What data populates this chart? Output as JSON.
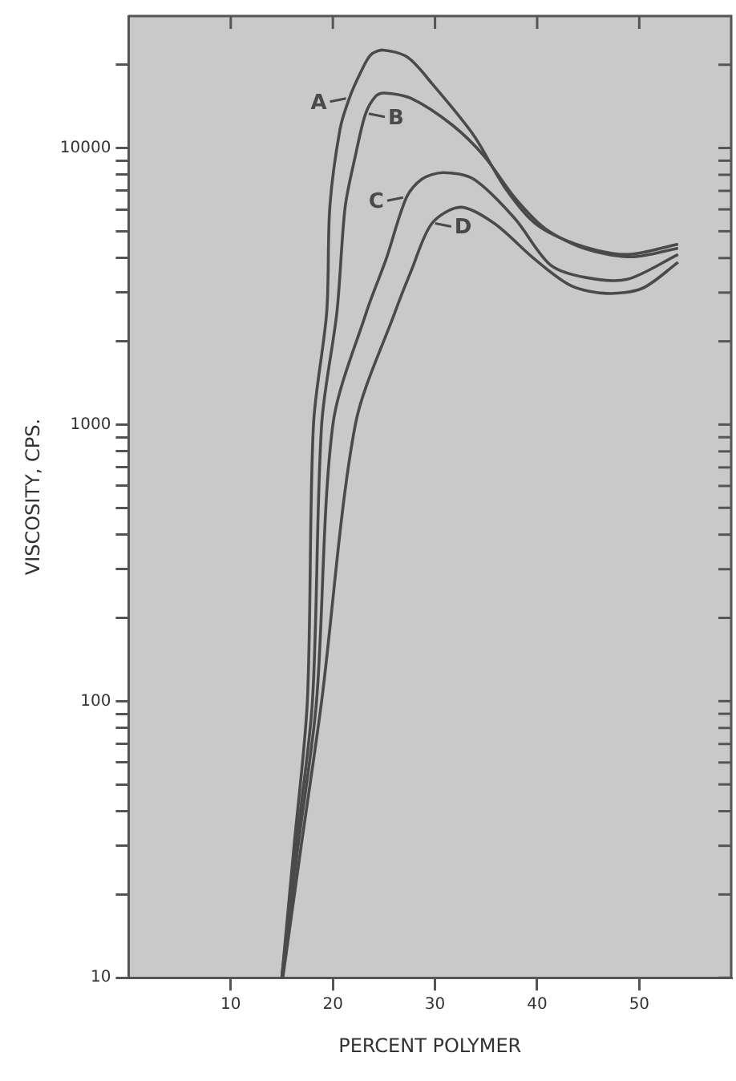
{
  "chart_data": {
    "type": "line",
    "xlabel": "PERCENT POLYMER",
    "ylabel": "VISCOSITY, CPS.",
    "log": "y",
    "grid": false,
    "legend": "top",
    "marker": "none",
    "line_style": "solid",
    "xlim": [
      0,
      59
    ],
    "xticks": [
      10,
      20,
      30,
      40,
      50
    ],
    "ylim": [
      10,
      30000
    ],
    "yticks": [
      10,
      {
        "value": 20,
        "label": null
      },
      {
        "value": 30,
        "label": null
      },
      {
        "value": 40,
        "label": null
      },
      {
        "value": 50,
        "label": null
      },
      {
        "value": 60,
        "label": null
      },
      {
        "value": 70,
        "label": null
      },
      {
        "value": 80,
        "label": null
      },
      {
        "value": 90,
        "label": null
      },
      100,
      {
        "value": 200,
        "label": null
      },
      {
        "value": 300,
        "label": null
      },
      {
        "value": 400,
        "label": null
      },
      {
        "value": 500,
        "label": null
      },
      {
        "value": 600,
        "label": null
      },
      {
        "value": 700,
        "label": null
      },
      {
        "value": 800,
        "label": null
      },
      {
        "value": 900,
        "label": null
      },
      1000,
      {
        "value": 2000,
        "label": null
      },
      {
        "value": 3000,
        "label": null
      },
      {
        "value": 4000,
        "label": null
      },
      {
        "value": 5000,
        "label": null
      },
      {
        "value": 6000,
        "label": null
      },
      {
        "value": 7000,
        "label": null
      },
      {
        "value": 8000,
        "label": null
      },
      {
        "value": 9000,
        "label": null
      },
      10000,
      {
        "value": 20000,
        "label": null
      }
    ],
    "series": [
      {
        "name": "A",
        "color": "#4a4a4a",
        "x": [
          15,
          16.2,
          17.5,
          18.1,
          19.4,
          19.7,
          20.7,
          21.6,
          22.7,
          23.7,
          24.9,
          27.3,
          29.7,
          33.8,
          36.8,
          39.8,
          43.8,
          48.8,
          53.8
        ],
        "values": [
          10,
          30,
          100,
          1000,
          2560,
          6110,
          11700,
          15100,
          18700,
          21700,
          22600,
          21300,
          17100,
          11100,
          7230,
          5340,
          4490,
          4120,
          4490
        ]
      },
      {
        "name": "B",
        "color": "#4a4a4a",
        "x": [
          15,
          16.4,
          18,
          18.9,
          20.4,
          21.2,
          22.2,
          23.2,
          24.2,
          25,
          27.7,
          31.7,
          34.8,
          37.8,
          40.8,
          44.8,
          49.3,
          53.8
        ],
        "values": [
          10,
          30,
          100,
          1000,
          2560,
          6110,
          9360,
          13300,
          15400,
          15800,
          15100,
          12100,
          9360,
          6620,
          5110,
          4310,
          4040,
          4340
        ]
      },
      {
        "name": "C",
        "color": "#4a4a4a",
        "x": [
          15,
          16.6,
          18.4,
          20,
          23.3,
          25.2,
          27.2,
          28.7,
          30.8,
          33.8,
          37.8,
          41.3,
          44.8,
          48.8,
          53.8
        ],
        "values": [
          10,
          30,
          100,
          1000,
          2560,
          3950,
          6620,
          7710,
          8150,
          7710,
          5570,
          3780,
          3400,
          3350,
          4120
        ]
      },
      {
        "name": "D",
        "color": "#4a4a4a",
        "x": [
          15.1,
          16.9,
          18.9,
          22.2,
          26.1,
          27.7,
          29.7,
          32.5,
          35.8,
          39.8,
          43.3,
          46.8,
          50.3,
          53.8
        ],
        "values": [
          10,
          30,
          100,
          1000,
          2560,
          3620,
          5340,
          6110,
          5340,
          3950,
          3180,
          2980,
          3110,
          3860
        ]
      }
    ]
  }
}
